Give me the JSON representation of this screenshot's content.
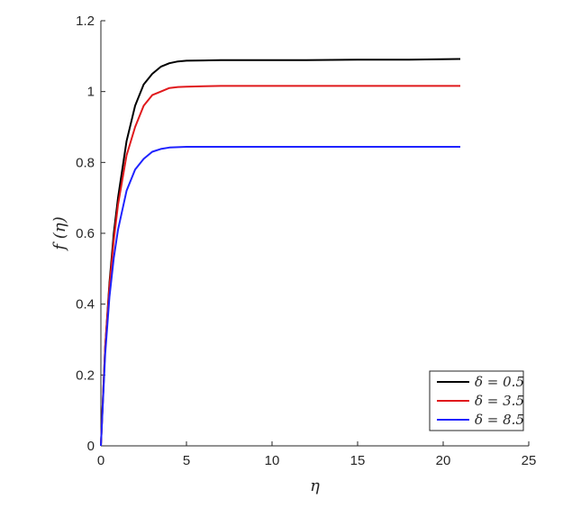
{
  "chart_data": {
    "type": "line",
    "title": "",
    "xlabel": "η",
    "ylabel": "f (η)",
    "xlim": [
      0,
      25
    ],
    "ylim": [
      0,
      1.2
    ],
    "xticks": [
      0,
      5,
      10,
      15,
      20,
      25
    ],
    "yticks": [
      0,
      0.2,
      0.4,
      0.6,
      0.8,
      1.0,
      1.2
    ],
    "xtick_labels": [
      "0",
      "5",
      "10",
      "15",
      "20",
      "25"
    ],
    "ytick_labels": [
      "0",
      "0.2",
      "0.4",
      "0.6",
      "0.8",
      "1",
      "1.2"
    ],
    "grid": false,
    "legend_position": "bottom-right",
    "series": [
      {
        "name": "δ = 0.5",
        "color": "#000000",
        "x": [
          0,
          0.25,
          0.5,
          0.75,
          1,
          1.5,
          2,
          2.5,
          3,
          3.5,
          4,
          4.5,
          5,
          6,
          7,
          8,
          10,
          12,
          15,
          18,
          21
        ],
        "y": [
          0,
          0.28,
          0.46,
          0.6,
          0.7,
          0.86,
          0.96,
          1.02,
          1.05,
          1.07,
          1.08,
          1.085,
          1.087,
          1.088,
          1.089,
          1.089,
          1.089,
          1.089,
          1.09,
          1.09,
          1.092
        ]
      },
      {
        "name": "δ = 3.5",
        "color": "#e0191c",
        "x": [
          0,
          0.25,
          0.5,
          0.75,
          1,
          1.5,
          2,
          2.5,
          3,
          3.5,
          4,
          4.5,
          5,
          6,
          7,
          8,
          10,
          12,
          15,
          18,
          21
        ],
        "y": [
          0,
          0.28,
          0.45,
          0.58,
          0.68,
          0.82,
          0.9,
          0.96,
          0.99,
          1.0,
          1.01,
          1.013,
          1.014,
          1.015,
          1.016,
          1.016,
          1.016,
          1.016,
          1.016,
          1.016,
          1.016
        ]
      },
      {
        "name": "δ = 8.5",
        "color": "#1f23ff",
        "x": [
          0,
          0.25,
          0.5,
          0.75,
          1,
          1.5,
          2,
          2.5,
          3,
          3.5,
          4,
          4.5,
          5,
          6,
          7,
          8,
          10,
          12,
          15,
          18,
          21
        ],
        "y": [
          0,
          0.26,
          0.42,
          0.53,
          0.61,
          0.72,
          0.78,
          0.81,
          0.83,
          0.838,
          0.842,
          0.843,
          0.844,
          0.844,
          0.844,
          0.844,
          0.844,
          0.844,
          0.844,
          0.844,
          0.844
        ]
      }
    ]
  }
}
